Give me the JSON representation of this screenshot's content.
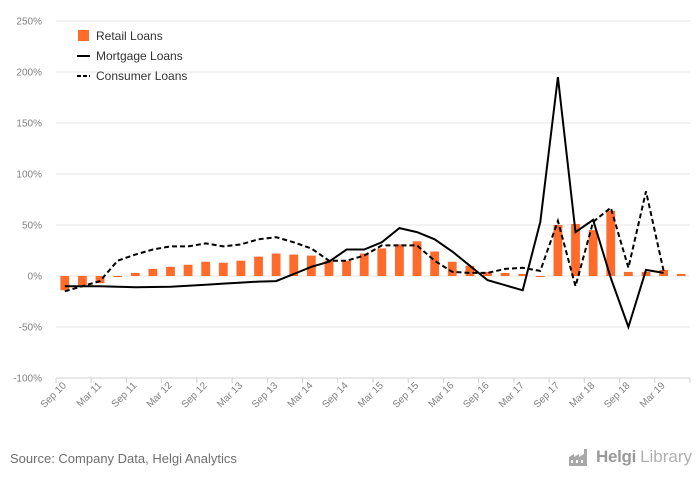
{
  "chart_data": {
    "type": "bar",
    "title": "",
    "xlabel": "",
    "ylabel": "",
    "ylim": [
      -100,
      250
    ],
    "yticks": [
      -100,
      -50,
      0,
      50,
      100,
      150,
      200,
      250
    ],
    "ytick_labels": [
      "-100%",
      "-50%",
      "0%",
      "50%",
      "100%",
      "150%",
      "200%",
      "250%"
    ],
    "categories": [
      "Sep 10",
      "Dec 10",
      "Mar 11",
      "Jun 11",
      "Sep 11",
      "Dec 11",
      "Mar 12",
      "Jun 12",
      "Sep 12",
      "Dec 12",
      "Mar 13",
      "Jun 13",
      "Sep 13",
      "Dec 13",
      "Mar 14",
      "Jun 14",
      "Sep 14",
      "Dec 14",
      "Mar 15",
      "Jun 15",
      "Sep 15",
      "Dec 15",
      "Mar 16",
      "Jun 16",
      "Sep 16",
      "Dec 16",
      "Mar 17",
      "Jun 17",
      "Sep 17",
      "Dec 17",
      "Mar 18",
      "Jun 18",
      "Sep 18",
      "Dec 18",
      "Mar 19",
      "Jun 19"
    ],
    "x_tick_labels": [
      "Sep 10",
      "Mar 11",
      "Sep 11",
      "Mar 12",
      "Sep 12",
      "Mar 13",
      "Sep 13",
      "Mar 14",
      "Sep 14",
      "Mar 15",
      "Sep 15",
      "Mar 16",
      "Sep 16",
      "Mar 17",
      "Sep 17",
      "Mar 18",
      "Sep 18",
      "Mar 19"
    ],
    "series": [
      {
        "name": "Retail Loans",
        "kind": "bar",
        "color": "#ff6b2b",
        "values": [
          -14,
          -9,
          -7,
          -1,
          3,
          7,
          9,
          11,
          14,
          13,
          15,
          19,
          22,
          21,
          20,
          15,
          15,
          22,
          27,
          31,
          34,
          24,
          14,
          10,
          4,
          3,
          2,
          -1,
          50,
          51,
          45,
          64,
          4,
          4,
          6,
          2
        ]
      },
      {
        "name": "Mortgage Loans",
        "kind": "line",
        "dash": "solid",
        "color": "#000000",
        "values": [
          -10,
          -10,
          -10,
          -10.5,
          -11,
          -10.8,
          -10.5,
          -9.5,
          -8.5,
          -7.5,
          -6.5,
          -5.5,
          -5,
          2,
          9,
          14,
          26,
          26,
          33,
          47,
          43,
          36,
          24,
          10,
          -4,
          -9,
          -14,
          53,
          195,
          43,
          55,
          -2,
          -50,
          6,
          3,
          null
        ]
      },
      {
        "name": "Consumer Loans",
        "kind": "line",
        "dash": "dashed",
        "color": "#000000",
        "values": [
          -15,
          -10,
          -5,
          15,
          21,
          26,
          29,
          29,
          32,
          29,
          31,
          36,
          38,
          33,
          27,
          15,
          15,
          20,
          30,
          30,
          30,
          15,
          4,
          3,
          3,
          7,
          8,
          5,
          54,
          -10,
          53,
          67,
          8,
          83,
          5,
          null
        ]
      }
    ],
    "legend": {
      "placement": "top-left",
      "items": [
        "Retail Loans",
        "Mortgage Loans",
        "Consumer Loans"
      ]
    }
  },
  "footer": {
    "source": "Source: Company Data, Helgi Analytics",
    "brand_name": "Helgi",
    "brand_suffix": "Library"
  },
  "colors": {
    "bar": "#ff6b2b",
    "line": "#000000",
    "axis_text": "#808080",
    "grid": "#e6e6e6"
  }
}
